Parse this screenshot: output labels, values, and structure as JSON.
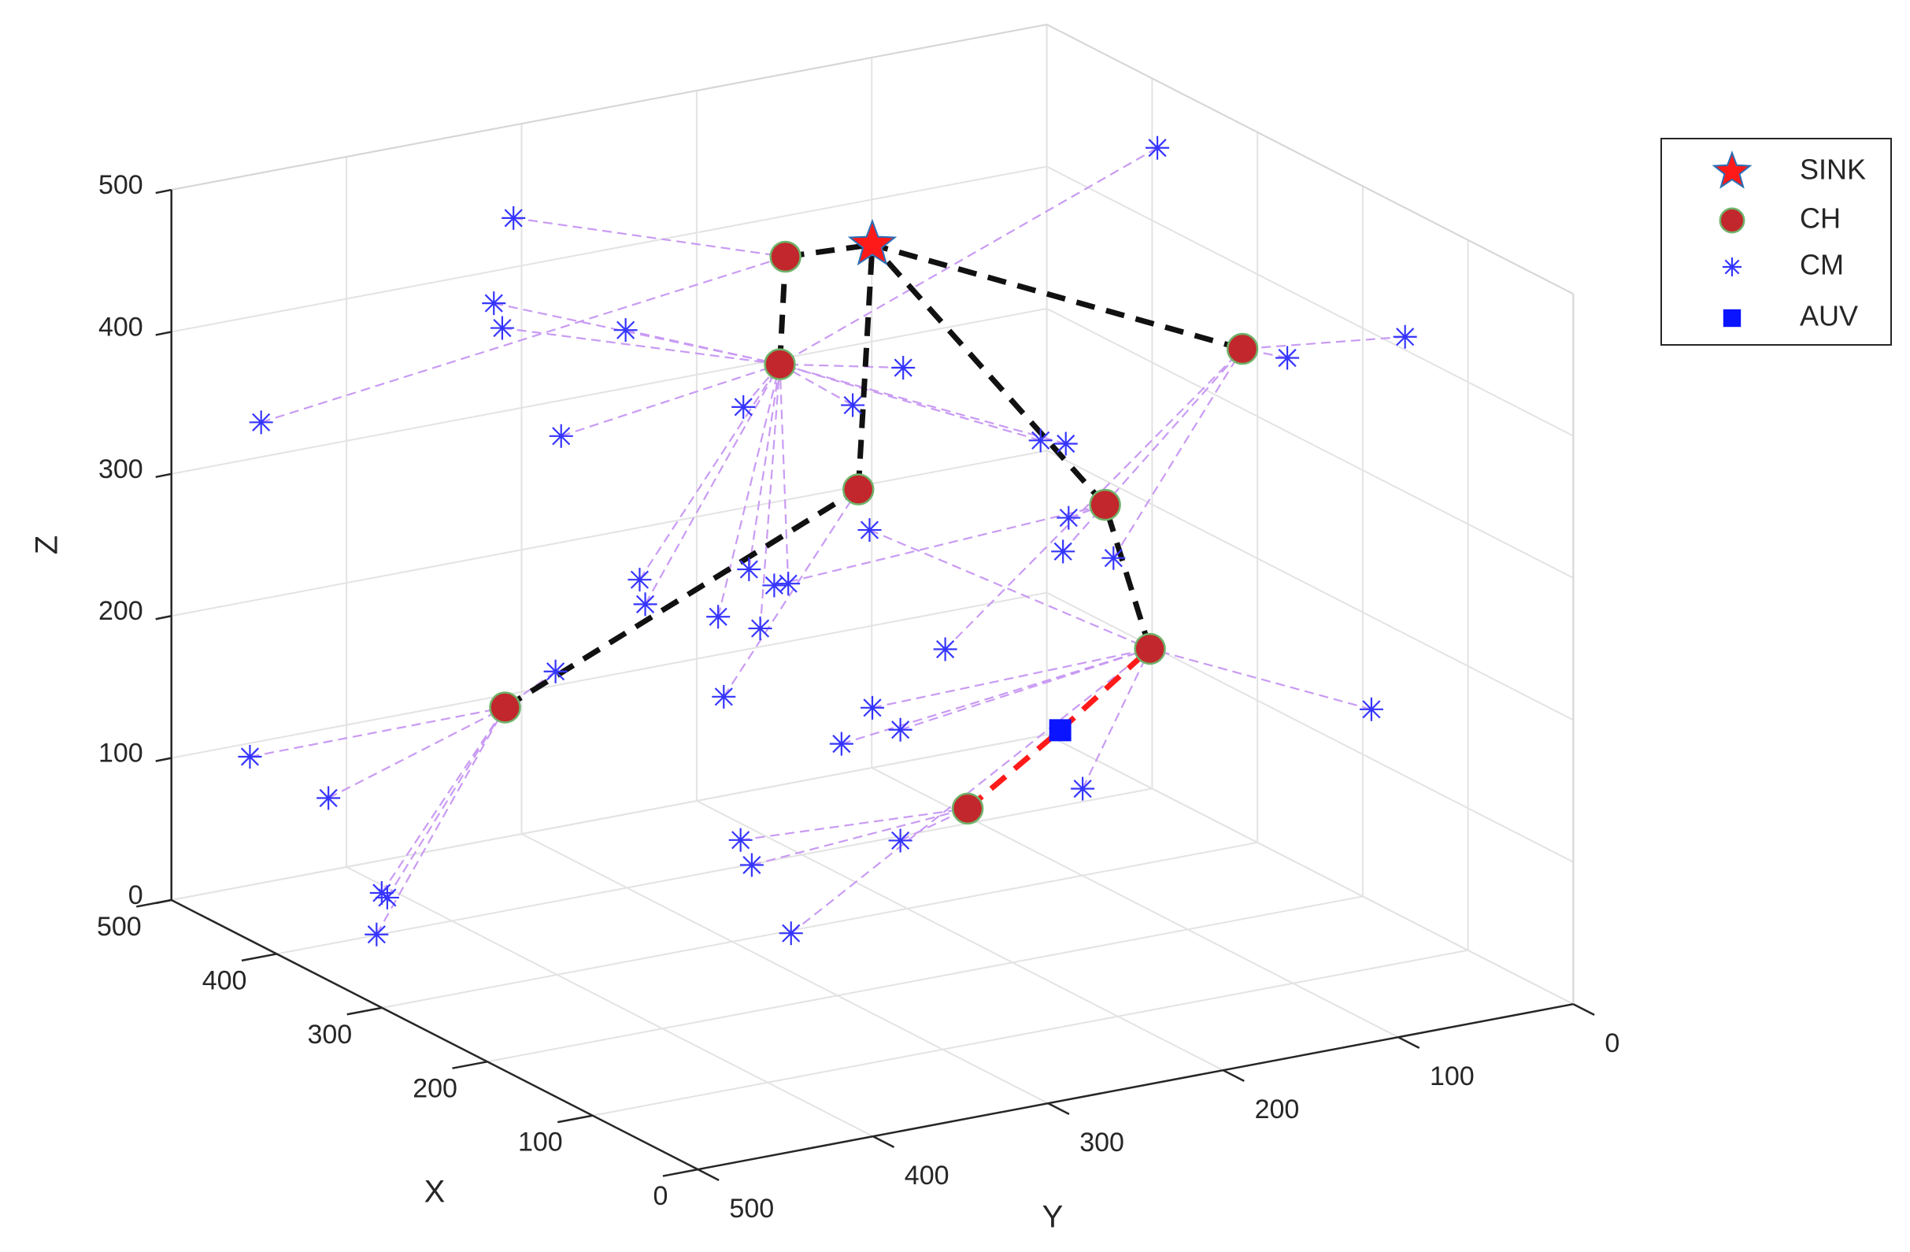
{
  "chart_data": {
    "type": "scatter3d",
    "xlabel": "X",
    "ylabel": "Y",
    "zlabel": "Z",
    "xlim": [
      0,
      500
    ],
    "ylim": [
      0,
      500
    ],
    "zlim": [
      0,
      500
    ],
    "xticks": [
      0,
      100,
      200,
      300,
      400,
      500
    ],
    "yticks": [
      0,
      100,
      200,
      300,
      400,
      500
    ],
    "zticks": [
      0,
      100,
      200,
      300,
      400,
      500
    ],
    "grid": true,
    "legend": "northeast",
    "series": [
      {
        "name": "SINK",
        "marker": "star",
        "color": "#ff1a1a",
        "edgecolor": "#2a6fb5",
        "x": [
          250
        ],
        "y": [
          250
        ],
        "z": [
          498
        ]
      },
      {
        "name": "CH",
        "marker": "circle",
        "color": "#c1272d",
        "edgecolor": "#6fb36a",
        "x": [
          281,
          283,
          255,
          167,
          118,
          151,
          381,
          216
        ],
        "y": [
          281,
          283,
          255,
          167,
          118,
          151,
          381,
          216
        ],
        "z": [
          485,
          409,
          325,
          327,
          444,
          228,
          153,
          106
        ],
        "next": [
          "SINK",
          0,
          "SINK",
          "SINK",
          "SINK",
          3,
          2,
          "AUV"
        ]
      },
      {
        "name": "CM",
        "marker": "asterisk",
        "color": "#3535ff",
        "x": [
          378,
          468,
          385,
          382,
          338,
          361,
          296,
          257,
          239,
          190,
          181,
          395,
          102,
          60,
          251,
          180,
          182,
          164,
          333,
          331,
          294,
          285,
          280,
          305,
          290,
          224,
          363,
          303,
          250,
          240,
          261,
          72,
          472,
          444,
          175,
          297,
          293,
          240,
          425,
          423,
          370,
          279
        ],
        "y": [
          378,
          468,
          385,
          382,
          338,
          361,
          296,
          257,
          239,
          190,
          181,
          0,
          102,
          60,
          251,
          180,
          182,
          164,
          333,
          331,
          294,
          285,
          280,
          305,
          290,
          224,
          363,
          303,
          250,
          240,
          261,
          72,
          472,
          444,
          175,
          297,
          293,
          240,
          425,
          423,
          461,
          279
        ],
        "z": [
          498,
          341,
          437,
          420,
          425,
          347,
          377,
          384,
          413,
          369,
          368,
          453,
          440,
          461,
          297,
          316,
          292,
          290,
          250,
          233,
          263,
          253,
          255,
          228,
          222,
          217,
          181,
          172,
          172,
          158,
          145,
          197,
          105,
          80,
          126,
          72,
          55,
          80,
          16,
          13,
          16,
          9
        ],
        "cluster_head": [
          0,
          0,
          1,
          1,
          1,
          1,
          1,
          1,
          1,
          1,
          1,
          1,
          4,
          4,
          5,
          3,
          4,
          4,
          1,
          1,
          1,
          3,
          1,
          1,
          1,
          4,
          6,
          2,
          5,
          5,
          5,
          5,
          6,
          6,
          5,
          7,
          7,
          7,
          6,
          6,
          6,
          5
        ]
      },
      {
        "name": "AUV",
        "marker": "square",
        "color": "#0a14ff",
        "x": [
          183
        ],
        "y": [
          183
        ],
        "z": [
          166
        ],
        "next": 5
      }
    ]
  }
}
